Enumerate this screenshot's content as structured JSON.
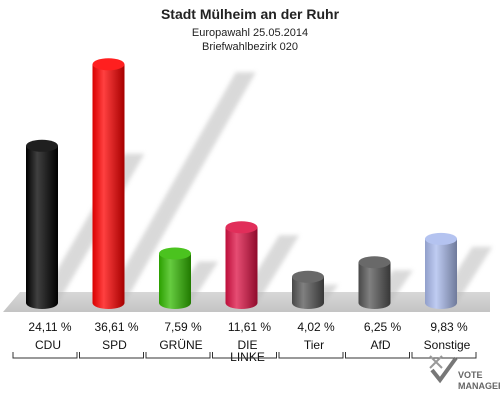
{
  "chart_data": {
    "type": "bar",
    "title": "Stadt Mülheim an der Ruhr",
    "subtitle_lines": [
      "Europawahl 25.05.2014",
      "Briefwahlbezirk 020"
    ],
    "categories": [
      "CDU",
      "SPD",
      "GRÜNE",
      "DIE LINKE",
      "Tier",
      "AfD",
      "Sonstige"
    ],
    "category_lines": [
      [
        "CDU"
      ],
      [
        "SPD"
      ],
      [
        "GRÜNE"
      ],
      [
        "DIE",
        "LINKE"
      ],
      [
        "Tier"
      ],
      [
        "AfD"
      ],
      [
        "Sonstige"
      ]
    ],
    "values": [
      24.11,
      36.61,
      7.59,
      11.61,
      4.02,
      6.25,
      9.83
    ],
    "value_labels": [
      "24,11 %",
      "36,61 %",
      "7,59 %",
      "11,61 %",
      "4,02 %",
      "6,25 %",
      "9,83 %"
    ],
    "colors": [
      "#000000",
      "#ff0000",
      "#33bb00",
      "#dd1144",
      "#555555",
      "#555555",
      "#aabbee"
    ],
    "ylim": [
      0,
      40
    ],
    "grid": false,
    "legend": "none"
  },
  "logo": {
    "text_lines": [
      "VOTE",
      "MANAGER"
    ]
  }
}
